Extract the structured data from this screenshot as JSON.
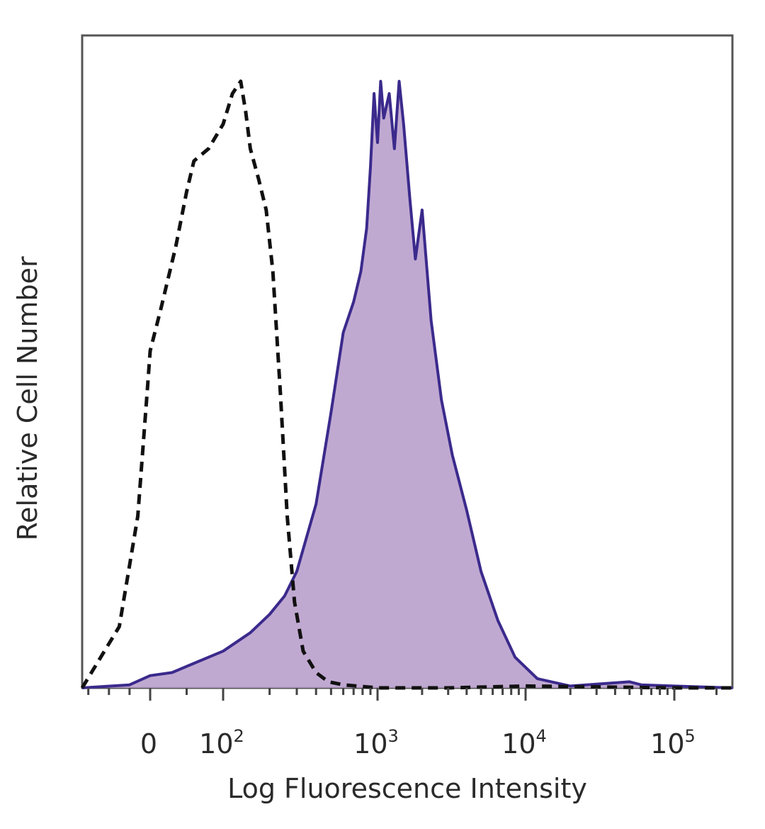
{
  "chart_data": {
    "type": "area",
    "xlabel": "Log Fluorescence Intensity",
    "ylabel": "Relative Cell Number",
    "x_scale": "biexponential",
    "ylim": [
      0,
      100
    ],
    "grid": false,
    "legend": "none",
    "x_ticks": [
      {
        "value": 0,
        "base": "0",
        "exp": ""
      },
      {
        "value": 100,
        "base": "10",
        "exp": "2"
      },
      {
        "value": 1000,
        "base": "10",
        "exp": "3"
      },
      {
        "value": 10000,
        "base": "10",
        "exp": "4"
      },
      {
        "value": 100000,
        "base": "10",
        "exp": "5"
      }
    ],
    "series": [
      {
        "style": "dashed",
        "color": "#111111",
        "fill": "none",
        "x": [
          -330,
          -150,
          -60,
          -15,
          0,
          15,
          35,
          50,
          60,
          80,
          100,
          115,
          130,
          140,
          150,
          170,
          190,
          210,
          235,
          260,
          290,
          330,
          400,
          480,
          600,
          1000,
          3000,
          10000,
          100000,
          260000
        ],
        "y": [
          0,
          10,
          28,
          48,
          55,
          62,
          72,
          81,
          86,
          88,
          92,
          97,
          99,
          94,
          88,
          83,
          78,
          68,
          48,
          28,
          14,
          6,
          2.5,
          1,
          0.5,
          0,
          0,
          0.3,
          0,
          0
        ]
      },
      {
        "style": "solid",
        "color": "#3b2a8c",
        "fill": "#b9a0cc",
        "x": [
          -330,
          -100,
          0,
          30,
          60,
          100,
          150,
          200,
          250,
          300,
          400,
          500,
          600,
          700,
          780,
          850,
          900,
          950,
          1000,
          1050,
          1100,
          1200,
          1300,
          1400,
          1500,
          1650,
          1800,
          2000,
          2300,
          2700,
          3200,
          4000,
          5000,
          6500,
          8500,
          12000,
          20000,
          50000,
          60000,
          100000,
          260000
        ],
        "y": [
          0,
          0.5,
          2,
          2.5,
          4,
          6,
          9,
          12,
          15,
          19,
          30,
          45,
          58,
          63,
          68,
          75,
          85,
          97,
          89,
          99,
          93,
          97,
          88,
          99,
          92,
          80,
          70,
          78,
          60,
          47,
          38,
          29,
          19,
          11,
          5,
          1.5,
          0.3,
          1,
          0.5,
          0.3,
          0
        ]
      }
    ]
  }
}
